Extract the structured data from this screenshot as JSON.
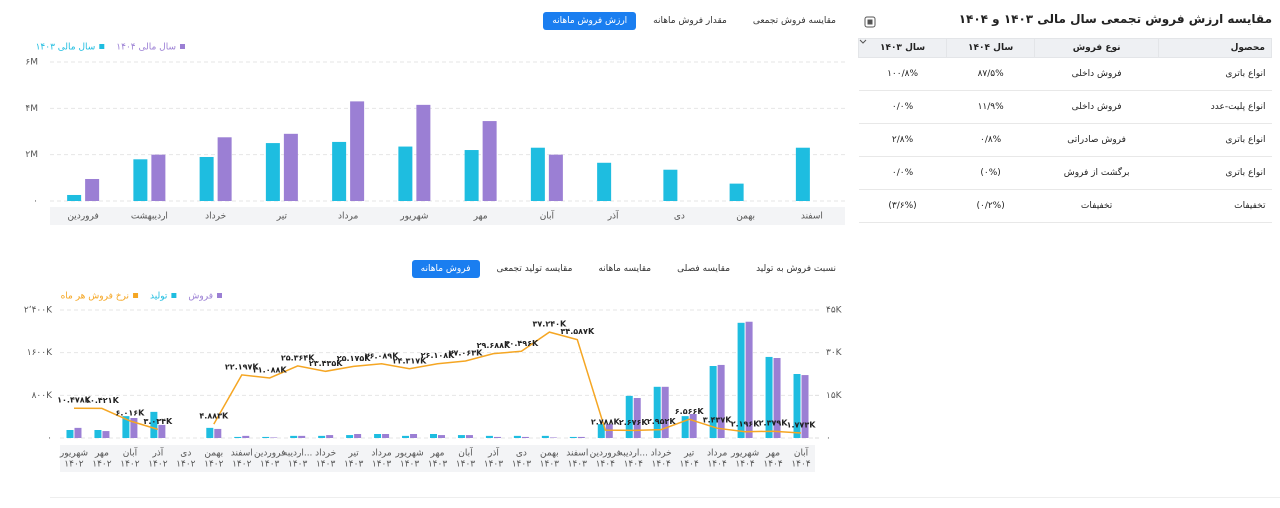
{
  "chart_data": [
    {
      "type": "bar",
      "tabs": [
        "ارزش فروش ماهانه",
        "مقدار فروش ماهانه",
        "مقایسه فروش تجمعی"
      ],
      "active_tab": 0,
      "categories": [
        "فروردین",
        "اردیبهشت",
        "خرداد",
        "تیر",
        "مرداد",
        "شهریور",
        "مهر",
        "آبان",
        "آذر",
        "دی",
        "بهمن",
        "اسفند"
      ],
      "series": [
        {
          "name": "سال مالی ۱۴۰۴",
          "color": "#9b7fd4",
          "values": [
            0.95,
            2.0,
            2.75,
            2.9,
            4.3,
            4.15,
            3.45,
            2.0,
            null,
            null,
            null,
            null
          ]
        },
        {
          "name": "سال مالی ۱۴۰۳",
          "color": "#1ebde0",
          "values": [
            0.26,
            1.8,
            1.9,
            2.5,
            2.55,
            2.35,
            2.2,
            2.3,
            1.65,
            1.35,
            0.75,
            2.3
          ]
        }
      ],
      "ylim": [
        0,
        6
      ],
      "yticks": [
        {
          "value": 0,
          "label": "۰"
        },
        {
          "value": 2,
          "label": "۲M"
        },
        {
          "value": 4,
          "label": "۴M"
        },
        {
          "value": 6,
          "label": "۶M"
        }
      ],
      "grid": true
    },
    {
      "type": "combo",
      "tabs": [
        "فروش ماهانه",
        "مقایسه تولید تجمعی",
        "مقایسه ماهانه",
        "مقایسه فصلی",
        "نسبت فروش به تولید"
      ],
      "active_tab": 0,
      "categories": [
        {
          "month": "شهریور",
          "year": "۱۴۰۲"
        },
        {
          "month": "مهر",
          "year": "۱۴۰۲"
        },
        {
          "month": "آبان",
          "year": "۱۴۰۲"
        },
        {
          "month": "آذر",
          "year": "۱۴۰۲"
        },
        {
          "month": "دی",
          "year": "۱۴۰۲"
        },
        {
          "month": "بهمن",
          "year": "۱۴۰۲"
        },
        {
          "month": "اسفند",
          "year": "۱۴۰۲"
        },
        {
          "month": "فروردین",
          "year": "۱۴۰۳"
        },
        {
          "month": "اردیبه...",
          "year": "۱۴۰۳"
        },
        {
          "month": "خرداد",
          "year": "۱۴۰۳"
        },
        {
          "month": "تیر",
          "year": "۱۴۰۳"
        },
        {
          "month": "مرداد",
          "year": "۱۴۰۳"
        },
        {
          "month": "شهریور",
          "year": "۱۴۰۳"
        },
        {
          "month": "مهر",
          "year": "۱۴۰۳"
        },
        {
          "month": "آبان",
          "year": "۱۴۰۳"
        },
        {
          "month": "آذر",
          "year": "۱۴۰۳"
        },
        {
          "month": "دی",
          "year": "۱۴۰۳"
        },
        {
          "month": "بهمن",
          "year": "۱۴۰۳"
        },
        {
          "month": "اسفند",
          "year": "۱۴۰۳"
        },
        {
          "month": "فروردین",
          "year": "۱۴۰۴"
        },
        {
          "month": "اردیبه...",
          "year": "۱۴۰۴"
        },
        {
          "month": "خرداد",
          "year": "۱۴۰۴"
        },
        {
          "month": "تیر",
          "year": "۱۴۰۴"
        },
        {
          "month": "مرداد",
          "year": "۱۴۰۴"
        },
        {
          "month": "شهریور",
          "year": "۱۴۰۴"
        },
        {
          "month": "مهر",
          "year": "۱۴۰۴"
        },
        {
          "month": "آبان",
          "year": "۱۴۰۴"
        }
      ],
      "series": [
        {
          "name": "فروش",
          "color": "#9b7fd4",
          "values": [
            190,
            130,
            375,
            245,
            null,
            170,
            40,
            10,
            40,
            55,
            75,
            75,
            75,
            55,
            55,
            20,
            20,
            10,
            20,
            260,
            750,
            960,
            450,
            1370,
            2180,
            1500,
            1180
          ]
        },
        {
          "name": "تولید",
          "color": "#1ebde0",
          "values": [
            150,
            150,
            410,
            490,
            null,
            190,
            20,
            20,
            40,
            40,
            55,
            75,
            40,
            75,
            55,
            40,
            40,
            40,
            20,
            260,
            790,
            960,
            410,
            1350,
            2160,
            1520,
            1200
          ]
        },
        {
          "name": "نرخ فروش هر ماه",
          "color": "#f5a623",
          "type": "line",
          "axis": "y2",
          "values": [
            10.478,
            10.421,
            6.016,
            3.034,
            null,
            4.883,
            22.197,
            21.088,
            25.364,
            23.435,
            25.175,
            26.089,
            24.317,
            26.108,
            27.063,
            29.688,
            30.496,
            37.24,
            34.587,
            2.788,
            2.676,
            2.952,
            6.566,
            3.437,
            2.196,
            2.379,
            1.773
          ],
          "value_labels": [
            "۱۰.۴۷۸K",
            "۱۰.۴۲۱K",
            "۶.۰۱۶K",
            "۳.۰۳۴K",
            null,
            "۴.۸۸۳K",
            "۲۲.۱۹۷K",
            "۲۱.۰۸۸K",
            "۲۵.۳۶۴K",
            "۲۳.۴۳۵K",
            "۲۵.۱۷۵K",
            "۲۶.۰۸۹K",
            "۲۴.۳۱۷K",
            "۲۶.۱۰۸K",
            "۲۷.۰۶۳K",
            "۲۹.۶۸۸K",
            "۳۰.۴۹۶K",
            "۳۷.۲۴۰K",
            "۳۴.۵۸۷K",
            "۲.۷۸۸K",
            "۲.۶۷۶K",
            "۲.۹۵۲K",
            "۶.۵۶۶K",
            "۳.۴۳۷K",
            "۲.۱۹۶K",
            "۲.۳۷۹K",
            "۱.۷۷۳K"
          ]
        }
      ],
      "ylim": [
        0,
        2400
      ],
      "yticks": [
        {
          "value": 0,
          "label": "۰"
        },
        {
          "value": 800,
          "label": "۸۰۰K"
        },
        {
          "value": 1600,
          "label": "۱۶۰۰K"
        },
        {
          "value": 2400,
          "label": "۲٬۴۰۰K"
        }
      ],
      "y2lim": [
        0,
        45
      ],
      "y2ticks": [
        {
          "value": 0,
          "label": "۰"
        },
        {
          "value": 15,
          "label": "۱۵K"
        },
        {
          "value": 30,
          "label": "۳۰K"
        },
        {
          "value": 45,
          "label": "۴۵K"
        }
      ],
      "grid": true
    }
  ],
  "table": {
    "title": "مقایسه ارزش فروش تجمعی سال مالی ۱۴۰۳ و ۱۴۰۴",
    "columns": [
      "محصول",
      "نوع فروش",
      "سال ۱۴۰۴",
      "سال ۱۴۰۳"
    ],
    "rows": [
      [
        "انواع باتری",
        "فروش داخلی",
        "۸۷/۵%",
        "۱۰۰/۸%"
      ],
      [
        "انواع پلیت-عدد",
        "فروش داخلی",
        "۱۱/۹%",
        "۰/۰%"
      ],
      [
        "انواع باتری",
        "فروش صادراتی",
        "۰/۸%",
        "۲/۸%"
      ],
      [
        "انواع باتری",
        "برگشت از فروش",
        "(۰%)",
        "۰/۰%"
      ],
      [
        "تخفیفات",
        "تخفیفات",
        "(۰/۲%)",
        "(۳/۶%)"
      ]
    ]
  }
}
